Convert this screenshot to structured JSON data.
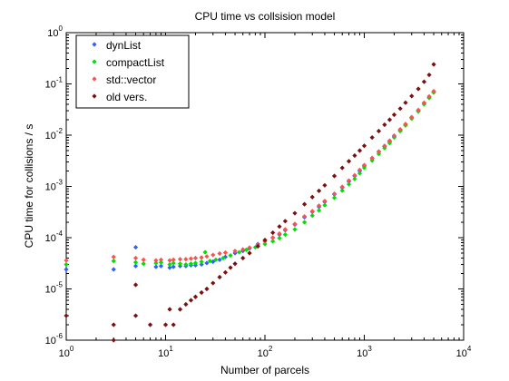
{
  "chart_data": {
    "type": "scatter",
    "title": "CPU time vs collsision model",
    "xlabel": "Number of parcels",
    "ylabel": "CPU time for collisions / s",
    "xscale": "log",
    "yscale": "log",
    "xlim": [
      1,
      10000
    ],
    "ylim": [
      1e-06,
      1
    ],
    "grid": false,
    "legend_position": "top-left",
    "x_ticks": [
      {
        "base": "10",
        "exp": "0"
      },
      {
        "base": "10",
        "exp": "1"
      },
      {
        "base": "10",
        "exp": "2"
      },
      {
        "base": "10",
        "exp": "3"
      },
      {
        "base": "10",
        "exp": "4"
      }
    ],
    "y_ticks": [
      {
        "base": "10",
        "exp": "-6"
      },
      {
        "base": "10",
        "exp": "-5"
      },
      {
        "base": "10",
        "exp": "-4"
      },
      {
        "base": "10",
        "exp": "-3"
      },
      {
        "base": "10",
        "exp": "-2"
      },
      {
        "base": "10",
        "exp": "-1"
      },
      {
        "base": "10",
        "exp": "0"
      }
    ],
    "series": [
      {
        "name": "dynList",
        "color": "#3060ff",
        "points": [
          [
            1,
            2.4e-05
          ],
          [
            3,
            2.4e-05
          ],
          [
            5,
            6.5e-05
          ],
          [
            5,
            2.8e-05
          ],
          [
            8,
            2.7e-05
          ],
          [
            9,
            2.8e-05
          ],
          [
            11,
            2.6e-05
          ],
          [
            12,
            2.7e-05
          ],
          [
            14,
            2.8e-05
          ],
          [
            16,
            2.8e-05
          ],
          [
            18,
            2.9e-05
          ],
          [
            20,
            2.9e-05
          ],
          [
            23,
            3e-05
          ],
          [
            26,
            3.2e-05
          ],
          [
            30,
            3.4e-05
          ],
          [
            35,
            3.7e-05
          ],
          [
            40,
            4.2e-05
          ],
          [
            50,
            5e-05
          ],
          [
            60,
            5.5e-05
          ],
          [
            70,
            6.2e-05
          ],
          [
            85,
            7.5e-05
          ],
          [
            100,
            8.5e-05
          ],
          [
            120,
            0.0001
          ],
          [
            140,
            0.000115
          ],
          [
            160,
            0.00014
          ],
          [
            200,
            0.00018
          ],
          [
            250,
            0.00025
          ],
          [
            300,
            0.00032
          ],
          [
            350,
            0.0004
          ],
          [
            400,
            0.0005
          ],
          [
            500,
            0.0007
          ],
          [
            600,
            0.00095
          ],
          [
            700,
            0.00125
          ],
          [
            800,
            0.0016
          ],
          [
            900,
            0.002
          ],
          [
            1000,
            0.0025
          ],
          [
            1200,
            0.0035
          ],
          [
            1400,
            0.0047
          ],
          [
            1600,
            0.006
          ],
          [
            1800,
            0.0075
          ],
          [
            2000,
            0.0095
          ],
          [
            2300,
            0.0125
          ],
          [
            2600,
            0.016
          ],
          [
            3000,
            0.022
          ],
          [
            3500,
            0.03
          ],
          [
            4000,
            0.042
          ],
          [
            4500,
            0.055
          ],
          [
            5000,
            0.07
          ]
        ]
      },
      {
        "name": "compactList",
        "color": "#00e000",
        "points": [
          [
            1,
            3e-05
          ],
          [
            3,
            3.5e-05
          ],
          [
            5,
            3.3e-05
          ],
          [
            6,
            3.1e-05
          ],
          [
            8,
            3.2e-05
          ],
          [
            9,
            3.3e-05
          ],
          [
            11,
            3e-05
          ],
          [
            12,
            3.2e-05
          ],
          [
            14,
            3.1e-05
          ],
          [
            16,
            3e-05
          ],
          [
            18,
            3.1e-05
          ],
          [
            20,
            3.2e-05
          ],
          [
            23,
            3.4e-05
          ],
          [
            25,
            5.2e-05
          ],
          [
            28,
            3.5e-05
          ],
          [
            32,
            3.7e-05
          ],
          [
            38,
            4e-05
          ],
          [
            45,
            4.5e-05
          ],
          [
            55,
            5.2e-05
          ],
          [
            65,
            5.8e-05
          ],
          [
            80,
            6.5e-05
          ],
          [
            100,
            7.5e-05
          ],
          [
            120,
            8.5e-05
          ],
          [
            140,
            9.8e-05
          ],
          [
            160,
            0.000115
          ],
          [
            200,
            0.000145
          ],
          [
            250,
            0.0002
          ],
          [
            300,
            0.00027
          ],
          [
            350,
            0.00034
          ],
          [
            400,
            0.00043
          ],
          [
            500,
            0.0006
          ],
          [
            600,
            0.00083
          ],
          [
            700,
            0.0011
          ],
          [
            800,
            0.0014
          ],
          [
            900,
            0.0018
          ],
          [
            1000,
            0.0023
          ],
          [
            1200,
            0.0032
          ],
          [
            1400,
            0.0043
          ],
          [
            1600,
            0.0056
          ],
          [
            1800,
            0.007
          ],
          [
            2000,
            0.009
          ],
          [
            2300,
            0.012
          ],
          [
            2600,
            0.0155
          ],
          [
            3000,
            0.021
          ],
          [
            3500,
            0.029
          ],
          [
            4000,
            0.04
          ],
          [
            4500,
            0.053
          ],
          [
            5000,
            0.068
          ]
        ]
      },
      {
        "name": "std::vector",
        "color": "#ff5050",
        "points": [
          [
            1,
            3.6e-05
          ],
          [
            3,
            4.2e-05
          ],
          [
            5,
            4e-05
          ],
          [
            6,
            3.7e-05
          ],
          [
            8,
            3.6e-05
          ],
          [
            9,
            3.7e-05
          ],
          [
            11,
            3.6e-05
          ],
          [
            12,
            3.7e-05
          ],
          [
            14,
            3.8e-05
          ],
          [
            16,
            3.8e-05
          ],
          [
            18,
            3.9e-05
          ],
          [
            20,
            4e-05
          ],
          [
            23,
            4.1e-05
          ],
          [
            26,
            4.3e-05
          ],
          [
            30,
            4.6e-05
          ],
          [
            35,
            4.9e-05
          ],
          [
            40,
            5.1e-05
          ],
          [
            50,
            5.5e-05
          ],
          [
            60,
            5.9e-05
          ],
          [
            70,
            6.4e-05
          ],
          [
            85,
            7.3e-05
          ],
          [
            100,
            8.5e-05
          ],
          [
            120,
            0.0001
          ],
          [
            140,
            0.00012
          ],
          [
            160,
            0.000145
          ],
          [
            200,
            0.000185
          ],
          [
            250,
            0.00026
          ],
          [
            300,
            0.00033
          ],
          [
            350,
            0.00042
          ],
          [
            400,
            0.00052
          ],
          [
            500,
            0.00072
          ],
          [
            600,
            0.00098
          ],
          [
            700,
            0.0013
          ],
          [
            800,
            0.00165
          ],
          [
            900,
            0.0021
          ],
          [
            1000,
            0.0026
          ],
          [
            1200,
            0.0036
          ],
          [
            1400,
            0.0048
          ],
          [
            1600,
            0.0062
          ],
          [
            1800,
            0.0078
          ],
          [
            2000,
            0.0098
          ],
          [
            2300,
            0.013
          ],
          [
            2600,
            0.0165
          ],
          [
            3000,
            0.0225
          ],
          [
            3500,
            0.031
          ],
          [
            4000,
            0.043
          ],
          [
            4500,
            0.057
          ],
          [
            5000,
            0.072
          ]
        ]
      },
      {
        "name": "old vers.",
        "color": "#7a1010",
        "points": [
          [
            1,
            3e-06
          ],
          [
            3,
            2e-06
          ],
          [
            3,
            1e-06
          ],
          [
            5,
            1.2e-05
          ],
          [
            5,
            3e-06
          ],
          [
            7,
            2e-06
          ],
          [
            10,
            2e-06
          ],
          [
            12,
            2e-06
          ],
          [
            11,
            4e-06
          ],
          [
            14,
            4e-06
          ],
          [
            16,
            5e-06
          ],
          [
            18,
            6e-06
          ],
          [
            20,
            7e-06
          ],
          [
            23,
            8.5e-06
          ],
          [
            26,
            1e-05
          ],
          [
            30,
            1.3e-05
          ],
          [
            35,
            1.7e-05
          ],
          [
            40,
            2.1e-05
          ],
          [
            45,
            2.6e-05
          ],
          [
            50,
            3.1e-05
          ],
          [
            60,
            4e-05
          ],
          [
            70,
            5e-05
          ],
          [
            85,
            6.8e-05
          ],
          [
            100,
            9e-05
          ],
          [
            120,
            0.000125
          ],
          [
            140,
            0.000165
          ],
          [
            160,
            0.00021
          ],
          [
            200,
            0.0003
          ],
          [
            250,
            0.00045
          ],
          [
            300,
            0.00062
          ],
          [
            350,
            0.00082
          ],
          [
            400,
            0.00105
          ],
          [
            500,
            0.0016
          ],
          [
            600,
            0.0023
          ],
          [
            700,
            0.0031
          ],
          [
            800,
            0.004
          ],
          [
            900,
            0.005
          ],
          [
            1000,
            0.0062
          ],
          [
            1200,
            0.009
          ],
          [
            1400,
            0.012
          ],
          [
            1600,
            0.016
          ],
          [
            1800,
            0.02
          ],
          [
            2000,
            0.025
          ],
          [
            2300,
            0.033
          ],
          [
            2600,
            0.043
          ],
          [
            3000,
            0.058
          ],
          [
            3500,
            0.08
          ],
          [
            4000,
            0.11
          ],
          [
            4500,
            0.15
          ],
          [
            5000,
            0.24
          ]
        ]
      }
    ]
  }
}
